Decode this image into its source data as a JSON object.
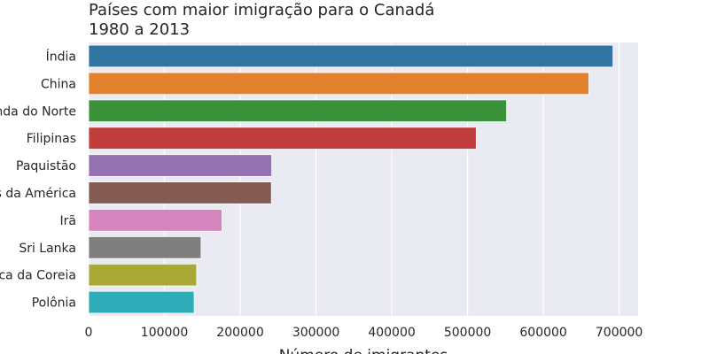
{
  "chart_data": {
    "type": "bar",
    "orientation": "horizontal",
    "title_lines": [
      "Países com maior imigração para o Canadá",
      "1980 a 2013"
    ],
    "xlabel": "Número de imigrantes",
    "ylabel": "",
    "categories": [
      "Índia",
      "China",
      "Reino Unido da Grã-Bretanha e Irlanda do Norte",
      "Filipinas",
      "Paquistão",
      "Estados Unidos da América",
      "Irã",
      "Sri Lanka",
      "República da Coreia",
      "Polônia"
    ],
    "values": [
      691904,
      659962,
      551500,
      511391,
      241600,
      241122,
      175923,
      148358,
      142581,
      139241
    ],
    "colors": [
      "#3274a1",
      "#e1812c",
      "#3a923a",
      "#c03d3e",
      "#9372b2",
      "#845b53",
      "#d684bd",
      "#7f7f7f",
      "#a9aa35",
      "#2eadb8"
    ],
    "xlim": [
      0,
      725000
    ],
    "xticks": [
      0,
      100000,
      200000,
      300000,
      400000,
      500000,
      600000,
      700000
    ],
    "grid": true,
    "background": "#eaeaf2"
  }
}
